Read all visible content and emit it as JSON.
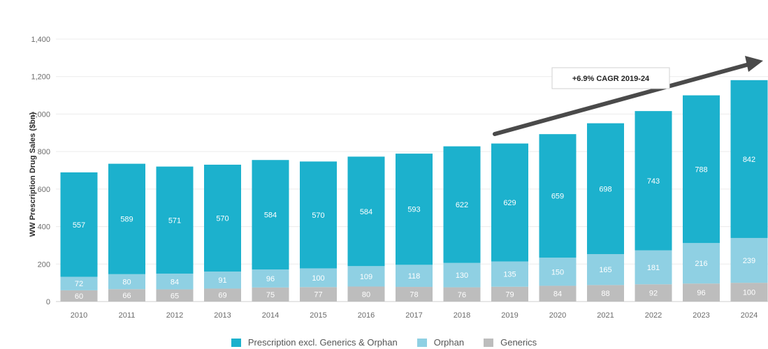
{
  "chart_data": {
    "type": "bar",
    "stacked": true,
    "title": "",
    "xlabel": "",
    "ylabel": "WW Prescription Drug Sales ($bn)",
    "ylim": [
      0,
      1400
    ],
    "yticks": [
      "0",
      "200",
      "400",
      "600",
      "800",
      "1,000",
      "1,200",
      "1,400"
    ],
    "grid": true,
    "legend_position": "bottom",
    "categories": [
      "2010",
      "2011",
      "2012",
      "2013",
      "2014",
      "2015",
      "2016",
      "2017",
      "2018",
      "2019",
      "2020",
      "2021",
      "2022",
      "2023",
      "2024"
    ],
    "series": [
      {
        "name": "Generics",
        "color": "#bdbdbd",
        "values": [
          60,
          66,
          65,
          69,
          75,
          77,
          80,
          78,
          76,
          79,
          84,
          88,
          92,
          96,
          100
        ]
      },
      {
        "name": "Orphan",
        "color": "#8fd0e3",
        "values": [
          72,
          80,
          84,
          91,
          96,
          100,
          109,
          118,
          130,
          135,
          150,
          165,
          181,
          216,
          239
        ]
      },
      {
        "name": "Prescription excl. Generics & Orphan",
        "color": "#1cb1cd",
        "values": [
          557,
          589,
          571,
          570,
          584,
          570,
          584,
          593,
          622,
          629,
          659,
          698,
          743,
          788,
          842
        ]
      }
    ],
    "annotation": {
      "text": "+6.9% CAGR 2019-24",
      "arrow_from": "2019",
      "arrow_to": "2024"
    }
  }
}
